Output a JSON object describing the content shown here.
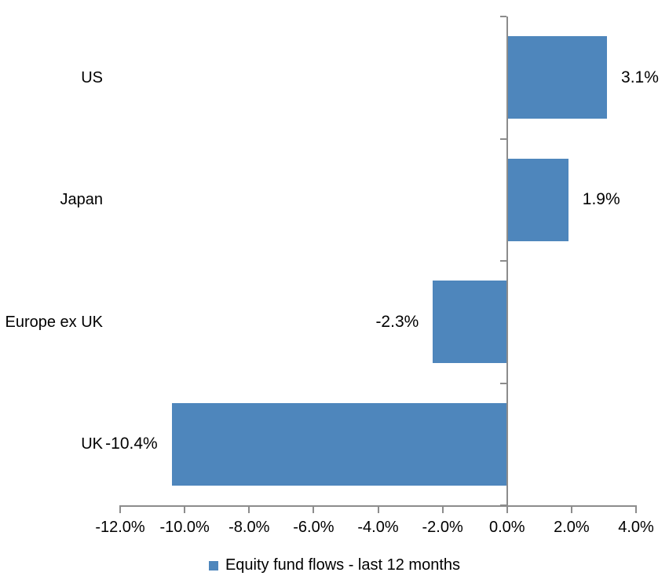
{
  "chart_data": {
    "type": "bar",
    "orientation": "horizontal",
    "title": "",
    "categories": [
      "US",
      "Japan",
      "Europe ex UK",
      "UK"
    ],
    "series": [
      {
        "name": "Equity fund flows - last 12 months",
        "values": [
          3.1,
          1.9,
          -2.3,
          -10.4
        ],
        "value_labels": [
          "3.1%",
          "1.9%",
          "-2.3%",
          "-10.4%"
        ]
      }
    ],
    "xlim": [
      -12,
      4
    ],
    "x_tick_values": [
      -12,
      -10,
      -8,
      -6,
      -4,
      -2,
      0,
      2,
      4
    ],
    "x_tick_labels": [
      "-12.0%",
      "-10.0%",
      "-8.0%",
      "-6.0%",
      "-4.0%",
      "-2.0%",
      "0.0%",
      "2.0%",
      "4.0%"
    ],
    "grid": false,
    "legend": "Equity fund flows - last 12 months",
    "legend_position": "bottom",
    "colors": {
      "bar": "#4E86BC",
      "axis": "#8C8C8C",
      "text": "#000000",
      "background": "#FFFFFF"
    }
  }
}
